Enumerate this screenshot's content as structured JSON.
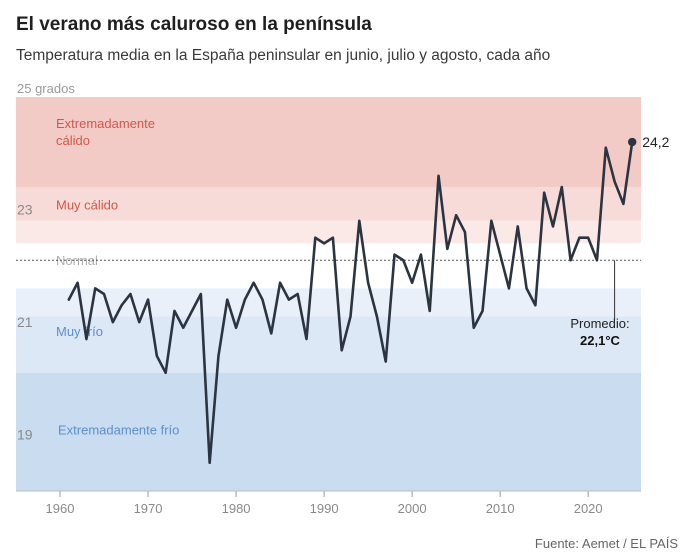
{
  "header": {
    "title": "El verano más caluroso en la península",
    "subtitle": "Temperatura media en la España peninsular en junio, julio y agosto, cada año"
  },
  "footer": {
    "source": "Fuente: Aemet / EL PAÍS"
  },
  "colors": {
    "extreme_hot": "#f2cac6",
    "very_hot": "#f7dbd8",
    "hot": "#fbe9e7",
    "normal": "#ffffff",
    "cold": "#e9f0f9",
    "very_cold": "#dde8f6",
    "extreme_cold": "#cadcf0",
    "line": "#2b3440",
    "hot_label": "#d1594b",
    "cold_label": "#5a8fd0"
  },
  "chart_data": {
    "type": "line",
    "title": "El verano más caluroso en la península",
    "subtitle": "Temperatura media en la España peninsular en junio, julio y agosto, cada año",
    "xlabel": "",
    "ylabel": "",
    "y_unit_label": "25 grados",
    "xlim": [
      1955,
      2026
    ],
    "ylim": [
      18,
      25
    ],
    "x_ticks": [
      1960,
      1970,
      1980,
      1990,
      2000,
      2010,
      2020
    ],
    "y_ticks": [
      19,
      21,
      23
    ],
    "grid": false,
    "bands": [
      {
        "label": "Extremadamente cálido",
        "label_lines": [
          "Extremadamente",
          "cálido"
        ],
        "from": 23.4,
        "to": 25,
        "color_key": "extreme_hot"
      },
      {
        "label": "Muy cálido",
        "from": 22.8,
        "to": 23.4,
        "color_key": "very_hot"
      },
      {
        "label": "",
        "from": 22.4,
        "to": 22.8,
        "color_key": "hot"
      },
      {
        "label": "Normal",
        "from": 21.6,
        "to": 22.4,
        "color_key": "normal"
      },
      {
        "label": "",
        "from": 21.1,
        "to": 21.6,
        "color_key": "cold"
      },
      {
        "label": "Muy frío",
        "from": 20.1,
        "to": 21.1,
        "color_key": "very_cold"
      },
      {
        "label": "Extremadamente frío",
        "from": 18,
        "to": 20.1,
        "color_key": "extreme_cold"
      }
    ],
    "average": {
      "value": 22.1,
      "label": "Promedio:",
      "value_label": "22,1°C"
    },
    "last_label": "24,2",
    "series": [
      {
        "x": [
          1961,
          1962,
          1963,
          1964,
          1965,
          1966,
          1967,
          1968,
          1969,
          1970,
          1971,
          1972,
          1973,
          1974,
          1975,
          1976,
          1977,
          1978,
          1979,
          1980,
          1981,
          1982,
          1983,
          1984,
          1985,
          1986,
          1987,
          1988,
          1989,
          1990,
          1991,
          1992,
          1993,
          1994,
          1995,
          1996,
          1997,
          1998,
          1999,
          2000,
          2001,
          2002,
          2003,
          2004,
          2005,
          2006,
          2007,
          2008,
          2009,
          2010,
          2011,
          2012,
          2013,
          2014,
          2015,
          2016,
          2017,
          2018,
          2019,
          2020,
          2021,
          2022,
          2023,
          2024,
          2025
        ],
        "y": [
          21.4,
          21.7,
          20.7,
          21.6,
          21.5,
          21.0,
          21.3,
          21.5,
          21.0,
          21.4,
          20.4,
          20.1,
          21.2,
          20.9,
          21.2,
          21.5,
          18.5,
          20.4,
          21.4,
          20.9,
          21.4,
          21.7,
          21.4,
          20.8,
          21.7,
          21.4,
          21.5,
          20.7,
          22.5,
          22.4,
          22.5,
          20.5,
          21.1,
          22.8,
          21.7,
          21.1,
          20.3,
          22.2,
          22.1,
          21.7,
          22.2,
          21.2,
          23.6,
          22.3,
          22.9,
          22.6,
          20.9,
          21.2,
          22.8,
          22.2,
          21.6,
          22.7,
          21.6,
          21.3,
          23.3,
          22.7,
          23.4,
          22.1,
          22.5,
          22.5,
          22.1,
          24.1,
          23.5,
          23.1,
          24.2
        ]
      }
    ]
  }
}
